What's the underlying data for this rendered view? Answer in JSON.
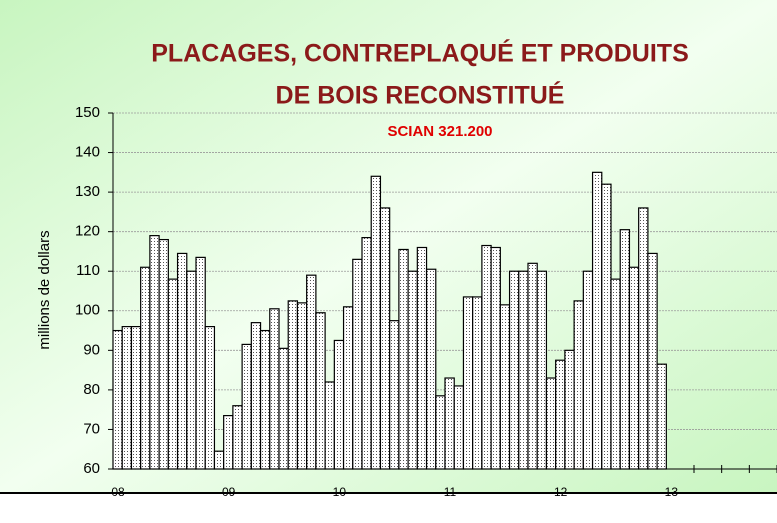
{
  "chart_data": {
    "type": "bar",
    "title": [
      "PLACAGES, CONTREPLAQUÉ ET PRODUITS",
      "DE BOIS RECONSTITUÉ"
    ],
    "subtitle": "SCIAN 321.200",
    "y_label": "millions de dollars",
    "categories": [
      "08",
      null,
      null,
      null,
      null,
      null,
      null,
      null,
      null,
      null,
      null,
      null,
      "09",
      null,
      null,
      null,
      null,
      null,
      null,
      null,
      null,
      null,
      null,
      null,
      "10",
      null,
      null,
      null,
      null,
      null,
      null,
      null,
      null,
      null,
      null,
      null,
      "11",
      null,
      null,
      null,
      null,
      null,
      null,
      null,
      null,
      null,
      null,
      null,
      "12",
      null,
      null,
      null,
      null,
      null,
      null,
      null,
      null,
      null,
      null,
      null,
      "13",
      null,
      null,
      null,
      null,
      null,
      null,
      null,
      null,
      null,
      null,
      null
    ],
    "values": [
      95,
      96,
      96,
      111,
      119,
      118,
      108,
      114.5,
      110,
      113.5,
      96,
      64.5,
      73.5,
      76,
      91.5,
      97,
      95,
      100.5,
      90.5,
      102.5,
      102,
      109,
      99.5,
      82,
      92.5,
      101,
      113,
      118.5,
      134,
      126,
      97.5,
      115.5,
      110,
      116,
      110.5,
      78.5,
      83,
      81,
      103.5,
      103.5,
      116.5,
      116,
      101.5,
      110,
      110,
      112,
      110,
      83,
      87.5,
      90,
      102.5,
      110,
      135,
      132,
      108,
      120.5,
      111,
      126,
      114.5,
      86.5,
      null,
      null,
      null,
      null,
      null,
      null,
      null,
      null,
      null,
      null,
      null,
      null
    ],
    "ylim": [
      60,
      150
    ],
    "yticks": [
      60,
      70,
      80,
      90,
      100,
      110,
      120,
      130,
      140,
      150
    ],
    "grid": true,
    "color": "#ffffff"
  }
}
